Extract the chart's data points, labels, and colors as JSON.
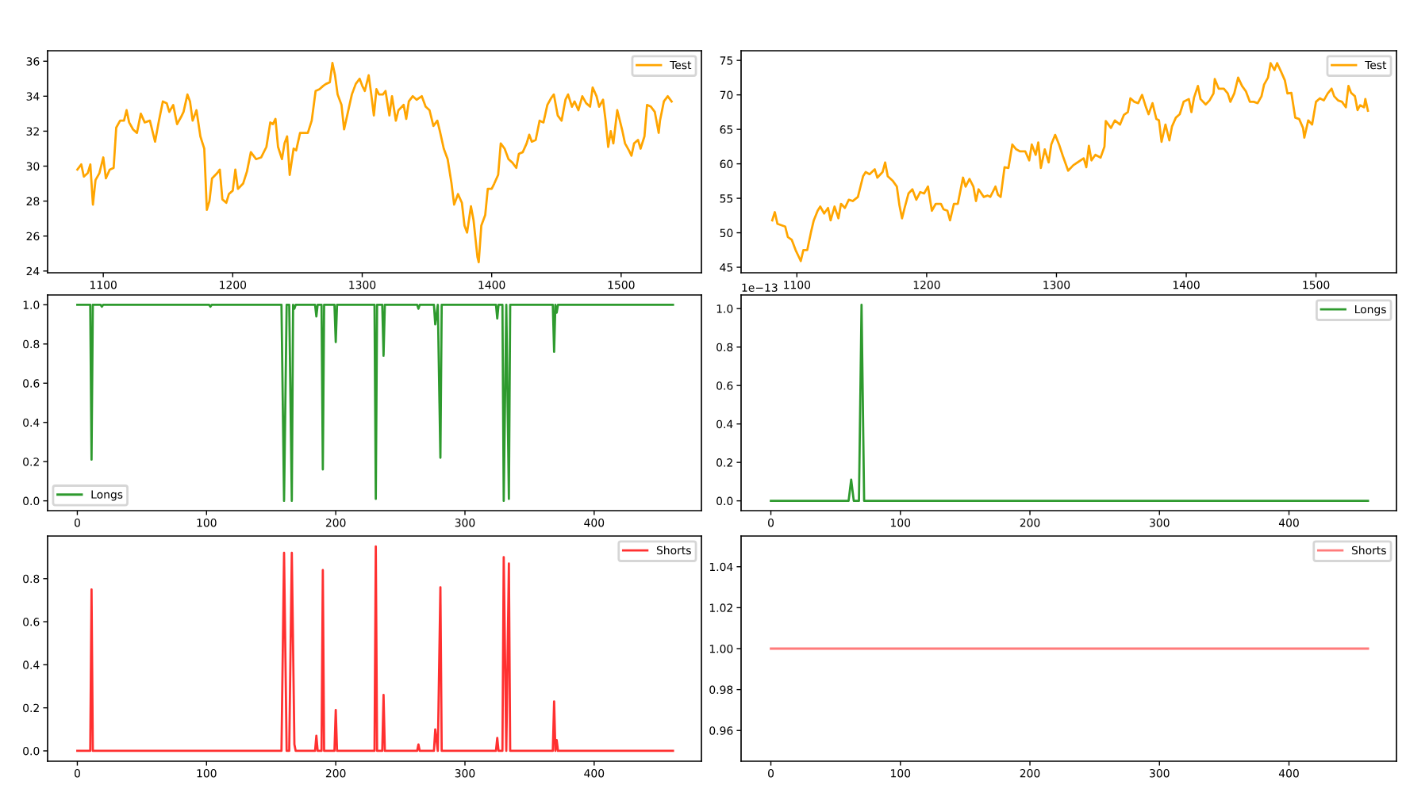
{
  "chart_data": [
    {
      "type": "line",
      "xlim": [
        1057,
        1562
      ],
      "xticks": [
        1100,
        1200,
        1300,
        1400,
        1500
      ],
      "ylim": [
        23.9,
        36.6
      ],
      "yticks": [
        24,
        26,
        28,
        30,
        32,
        34,
        36
      ],
      "legend": "top right",
      "series": [
        {
          "name": "Test",
          "color": "#ffa500",
          "x": [
            1080,
            1083,
            1085,
            1088,
            1090,
            1092,
            1094,
            1097,
            1100,
            1102,
            1105,
            1108,
            1110,
            1113,
            1116,
            1118,
            1120,
            1123,
            1126,
            1129,
            1132,
            1136,
            1140,
            1143,
            1146,
            1149,
            1151,
            1154,
            1157,
            1160,
            1162,
            1165,
            1167,
            1169,
            1172,
            1175,
            1178,
            1180,
            1182,
            1184,
            1188,
            1190,
            1192,
            1195,
            1197,
            1200,
            1202,
            1204,
            1208,
            1211,
            1214,
            1218,
            1222,
            1226,
            1229,
            1231,
            1233,
            1235,
            1238,
            1240,
            1242,
            1244,
            1247,
            1249,
            1252,
            1255,
            1258,
            1261,
            1264,
            1267,
            1270,
            1272,
            1275,
            1277,
            1279,
            1281,
            1284,
            1286,
            1289,
            1292,
            1295,
            1298,
            1300,
            1302,
            1305,
            1307,
            1309,
            1311,
            1313,
            1316,
            1318,
            1321,
            1323,
            1326,
            1328,
            1332,
            1334,
            1336,
            1339,
            1342,
            1346,
            1349,
            1352,
            1355,
            1358,
            1360,
            1363,
            1366,
            1369,
            1371,
            1374,
            1377,
            1379,
            1381,
            1384,
            1386,
            1389,
            1390,
            1392,
            1395,
            1397,
            1400,
            1402,
            1405,
            1407,
            1410,
            1413,
            1416,
            1419,
            1421,
            1424,
            1427,
            1429,
            1431,
            1434,
            1437,
            1440,
            1443,
            1446,
            1448,
            1451,
            1454,
            1457,
            1459,
            1462,
            1464,
            1467,
            1470,
            1473,
            1476,
            1478,
            1481,
            1483,
            1486,
            1488,
            1490,
            1492,
            1494,
            1497,
            1499,
            1501,
            1503,
            1506,
            1508,
            1510,
            1513,
            1515,
            1518,
            1520,
            1523,
            1526,
            1529,
            1530,
            1533,
            1536,
            1539
          ],
          "values": [
            29.8,
            30.1,
            29.4,
            29.6,
            30.1,
            27.8,
            29.2,
            29.6,
            30.5,
            29.3,
            29.8,
            29.9,
            32.2,
            32.6,
            32.6,
            33.2,
            32.5,
            32.1,
            31.9,
            33.0,
            32.5,
            32.6,
            31.4,
            32.6,
            33.7,
            33.6,
            33.1,
            33.5,
            32.4,
            32.8,
            33.1,
            34.1,
            33.7,
            32.6,
            33.2,
            31.7,
            31.0,
            27.5,
            28.0,
            29.3,
            29.6,
            29.8,
            28.1,
            27.9,
            28.4,
            28.6,
            29.8,
            28.7,
            29.0,
            29.7,
            30.8,
            30.4,
            30.5,
            31.1,
            32.5,
            32.4,
            32.7,
            31.1,
            30.4,
            31.3,
            31.7,
            29.5,
            31.0,
            30.9,
            31.9,
            31.9,
            31.9,
            32.6,
            34.3,
            34.4,
            34.6,
            34.7,
            34.8,
            35.9,
            35.2,
            34.1,
            33.5,
            32.1,
            33.1,
            34.1,
            34.7,
            35.0,
            34.6,
            34.3,
            35.2,
            34.1,
            32.9,
            34.4,
            34.1,
            34.1,
            34.3,
            32.9,
            34.0,
            32.6,
            33.2,
            33.5,
            32.7,
            33.7,
            34.0,
            33.8,
            34.0,
            33.4,
            33.2,
            32.3,
            32.6,
            32.0,
            31.0,
            30.4,
            29.0,
            27.8,
            28.4,
            27.9,
            26.6,
            26.2,
            27.7,
            26.9,
            24.8,
            24.5,
            26.6,
            27.2,
            28.7,
            28.7,
            29.0,
            29.5,
            31.3,
            31.0,
            30.4,
            30.2,
            29.9,
            30.7,
            30.8,
            31.3,
            31.8,
            31.4,
            31.5,
            32.6,
            32.5,
            33.5,
            33.9,
            34.1,
            32.9,
            32.6,
            33.8,
            34.1,
            33.4,
            33.7,
            33.2,
            34.0,
            33.6,
            33.4,
            34.5,
            34.0,
            33.4,
            33.8,
            32.6,
            31.1,
            32.0,
            31.3,
            33.2,
            32.6,
            32.0,
            31.3,
            30.9,
            30.6,
            31.3,
            31.5,
            31.0,
            31.7,
            33.5,
            33.4,
            33.1,
            31.9,
            32.6,
            33.7,
            34.0,
            33.7
          ]
        }
      ]
    },
    {
      "type": "line",
      "xlim": [
        1057,
        1562
      ],
      "xticks": [
        1100,
        1200,
        1300,
        1400,
        1500
      ],
      "ylim": [
        44.2,
        76.4
      ],
      "yticks": [
        45,
        50,
        55,
        60,
        65,
        70,
        75
      ],
      "legend": "top right",
      "series": [
        {
          "name": "Test",
          "color": "#ffa500",
          "x": [
            1081,
            1083,
            1085,
            1088,
            1091,
            1093,
            1096,
            1099,
            1101,
            1103,
            1105,
            1108,
            1111,
            1113,
            1116,
            1118,
            1121,
            1124,
            1126,
            1129,
            1132,
            1134,
            1137,
            1140,
            1143,
            1147,
            1151,
            1153,
            1156,
            1160,
            1162,
            1166,
            1168,
            1170,
            1174,
            1177,
            1179,
            1181,
            1183,
            1186,
            1189,
            1192,
            1195,
            1198,
            1201,
            1204,
            1207,
            1211,
            1213,
            1216,
            1218,
            1221,
            1224,
            1228,
            1230,
            1233,
            1236,
            1238,
            1240,
            1244,
            1247,
            1249,
            1253,
            1255,
            1257,
            1260,
            1263,
            1266,
            1269,
            1272,
            1276,
            1279,
            1281,
            1284,
            1286,
            1288,
            1291,
            1294,
            1296,
            1299,
            1302,
            1305,
            1309,
            1313,
            1317,
            1321,
            1323,
            1325,
            1327,
            1330,
            1334,
            1337,
            1338,
            1342,
            1345,
            1349,
            1352,
            1355,
            1357,
            1360,
            1363,
            1366,
            1369,
            1371,
            1374,
            1377,
            1379,
            1381,
            1384,
            1387,
            1389,
            1392,
            1395,
            1398,
            1402,
            1404,
            1406,
            1409,
            1411,
            1415,
            1418,
            1421,
            1422,
            1425,
            1429,
            1432,
            1434,
            1437,
            1440,
            1443,
            1446,
            1449,
            1452,
            1455,
            1458,
            1460,
            1463,
            1465,
            1468,
            1470,
            1473,
            1476,
            1478,
            1481,
            1484,
            1487,
            1490,
            1491,
            1494,
            1497,
            1500,
            1503,
            1506,
            1509,
            1512,
            1514,
            1517,
            1520,
            1523,
            1525,
            1527,
            1530,
            1532,
            1534,
            1537,
            1538,
            1540
          ],
          "values": [
            51.8,
            53.0,
            51.3,
            51.1,
            50.9,
            49.4,
            49.0,
            47.5,
            46.7,
            45.9,
            47.5,
            47.5,
            50.2,
            51.8,
            53.2,
            53.8,
            52.8,
            53.6,
            51.8,
            53.8,
            52.1,
            54.2,
            53.6,
            54.8,
            54.6,
            55.2,
            58.2,
            58.8,
            58.5,
            59.2,
            58.0,
            58.8,
            60.2,
            58.2,
            57.5,
            56.7,
            54.0,
            52.1,
            53.6,
            55.7,
            56.3,
            54.8,
            55.9,
            55.7,
            56.7,
            53.2,
            54.2,
            54.2,
            53.4,
            53.2,
            51.8,
            54.2,
            54.2,
            58.0,
            56.7,
            57.8,
            56.7,
            54.6,
            56.3,
            55.2,
            55.4,
            55.2,
            56.7,
            55.5,
            55.2,
            59.5,
            59.4,
            62.8,
            62.1,
            61.8,
            61.8,
            60.5,
            62.8,
            61.3,
            63.1,
            59.4,
            62.1,
            60.2,
            62.8,
            64.2,
            62.8,
            61.1,
            59.0,
            59.8,
            60.3,
            60.8,
            59.5,
            62.6,
            60.5,
            61.3,
            60.9,
            62.5,
            66.2,
            65.2,
            66.3,
            65.7,
            67.1,
            67.5,
            69.5,
            69.0,
            68.8,
            70.0,
            68.2,
            67.2,
            68.8,
            66.5,
            66.3,
            63.2,
            65.7,
            63.4,
            65.4,
            66.7,
            67.2,
            69.0,
            69.4,
            67.5,
            69.6,
            71.3,
            69.4,
            68.6,
            69.2,
            70.2,
            72.3,
            70.9,
            70.9,
            70.2,
            69.0,
            70.2,
            72.5,
            71.3,
            70.5,
            69.0,
            69.0,
            68.8,
            69.8,
            71.5,
            72.5,
            74.6,
            73.6,
            74.6,
            73.4,
            72.1,
            70.2,
            70.3,
            66.7,
            66.5,
            65.2,
            63.8,
            66.3,
            65.7,
            69.0,
            69.5,
            69.2,
            70.2,
            70.9,
            69.8,
            69.2,
            69.0,
            68.2,
            71.3,
            70.3,
            69.8,
            67.8,
            68.5,
            68.2,
            69.4,
            67.7
          ]
        }
      ]
    },
    {
      "type": "line",
      "xlim": [
        -23,
        483
      ],
      "xticks": [
        0,
        100,
        200,
        300,
        400
      ],
      "ylim": [
        -0.05,
        1.05
      ],
      "yticks": [
        {
          "value": 0,
          "label": "0.0"
        },
        {
          "value": 0.2,
          "label": "0.2"
        },
        {
          "value": 0.4,
          "label": "0.4"
        },
        {
          "value": 0.6,
          "label": "0.6"
        },
        {
          "value": 0.8,
          "label": "0.8"
        },
        {
          "value": 1,
          "label": "1.0"
        }
      ],
      "legend": "bottom left",
      "series": [
        {
          "name": "Longs",
          "color": "#2e9a2e",
          "x": [
            0,
            10,
            11,
            12,
            18,
            19,
            20,
            102,
            103,
            104,
            158,
            160,
            162,
            164,
            166,
            167,
            168,
            169,
            184,
            185,
            186,
            189,
            190,
            191,
            199,
            200,
            201,
            230,
            231,
            232,
            236,
            237,
            238,
            263,
            264,
            265,
            276,
            277,
            279,
            281,
            282,
            324,
            325,
            326,
            329,
            330,
            332,
            334,
            335,
            368,
            369,
            370,
            371,
            372,
            461
          ],
          "values": [
            1,
            1,
            0.21,
            1,
            1,
            0.99,
            1,
            1,
            0.99,
            1,
            1,
            0.0,
            1,
            1,
            0.0,
            1,
            0.98,
            1,
            1,
            0.94,
            1,
            1,
            0.16,
            1,
            1,
            0.81,
            1,
            1,
            0.01,
            1,
            1,
            0.74,
            1,
            1,
            0.98,
            1,
            1,
            0.9,
            1,
            0.22,
            1,
            1,
            0.93,
            1,
            1,
            0.0,
            1,
            0.01,
            1,
            1,
            0.76,
            1,
            0.96,
            1,
            1
          ]
        }
      ]
    },
    {
      "type": "line",
      "xlim": [
        -23,
        483
      ],
      "xticks": [
        0,
        100,
        200,
        300,
        400
      ],
      "ylim": [
        -0.051,
        1.071
      ],
      "yticks": [
        {
          "value": 0,
          "label": "0.0"
        },
        {
          "value": 0.2,
          "label": "0.2"
        },
        {
          "value": 0.4,
          "label": "0.4"
        },
        {
          "value": 0.6,
          "label": "0.6"
        },
        {
          "value": 0.8,
          "label": "0.8"
        },
        {
          "value": 1,
          "label": "1.0"
        }
      ],
      "legend": "top right",
      "annotations": [
        "1e−13"
      ],
      "series": [
        {
          "name": "Longs",
          "color": "#2e9a2e",
          "x": [
            0,
            60,
            62,
            64,
            68,
            70,
            72,
            461
          ],
          "values": [
            0,
            0,
            0.11,
            0,
            0,
            1.02,
            0,
            0
          ]
        }
      ]
    },
    {
      "type": "line",
      "xlim": [
        -23,
        483
      ],
      "xticks": [
        0,
        100,
        200,
        300,
        400
      ],
      "ylim": [
        -0.048,
        0.998
      ],
      "yticks": [
        {
          "value": 0,
          "label": "0.0"
        },
        {
          "value": 0.2,
          "label": "0.2"
        },
        {
          "value": 0.4,
          "label": "0.4"
        },
        {
          "value": 0.6,
          "label": "0.6"
        },
        {
          "value": 0.8,
          "label": "0.8"
        }
      ],
      "legend": "top right",
      "series": [
        {
          "name": "Shorts",
          "color": "#ff3030",
          "x": [
            0,
            10,
            11,
            12,
            158,
            160,
            162,
            164,
            166,
            168,
            169,
            184,
            185,
            186,
            189,
            190,
            191,
            199,
            200,
            201,
            230,
            231,
            232,
            236,
            237,
            238,
            263,
            264,
            265,
            276,
            277,
            279,
            281,
            282,
            324,
            325,
            326,
            329,
            330,
            332,
            334,
            335,
            368,
            369,
            370,
            371,
            372,
            461
          ],
          "values": [
            0,
            0,
            0.75,
            0,
            0,
            0.92,
            0,
            0,
            0.92,
            0.03,
            0,
            0,
            0.07,
            0,
            0,
            0.84,
            0,
            0,
            0.19,
            0,
            0,
            0.95,
            0,
            0,
            0.26,
            0,
            0,
            0.03,
            0,
            0,
            0.1,
            0,
            0.76,
            0,
            0,
            0.06,
            0,
            0,
            0.9,
            0,
            0.87,
            0,
            0,
            0.23,
            0,
            0.05,
            0,
            0
          ]
        }
      ]
    },
    {
      "type": "line",
      "xlim": [
        -23,
        483
      ],
      "xticks": [
        0,
        100,
        200,
        300,
        400
      ],
      "ylim": [
        0.945,
        1.055
      ],
      "yticks": [
        {
          "value": 0.96,
          "label": "0.96"
        },
        {
          "value": 0.98,
          "label": "0.98"
        },
        {
          "value": 1,
          "label": "1.00"
        },
        {
          "value": 1.02,
          "label": "1.02"
        },
        {
          "value": 1.04,
          "label": "1.04"
        }
      ],
      "legend": "top right",
      "series": [
        {
          "name": "Shorts",
          "color": "#ff7b7b",
          "x": [
            0,
            461
          ],
          "values": [
            1,
            1
          ]
        }
      ]
    }
  ]
}
